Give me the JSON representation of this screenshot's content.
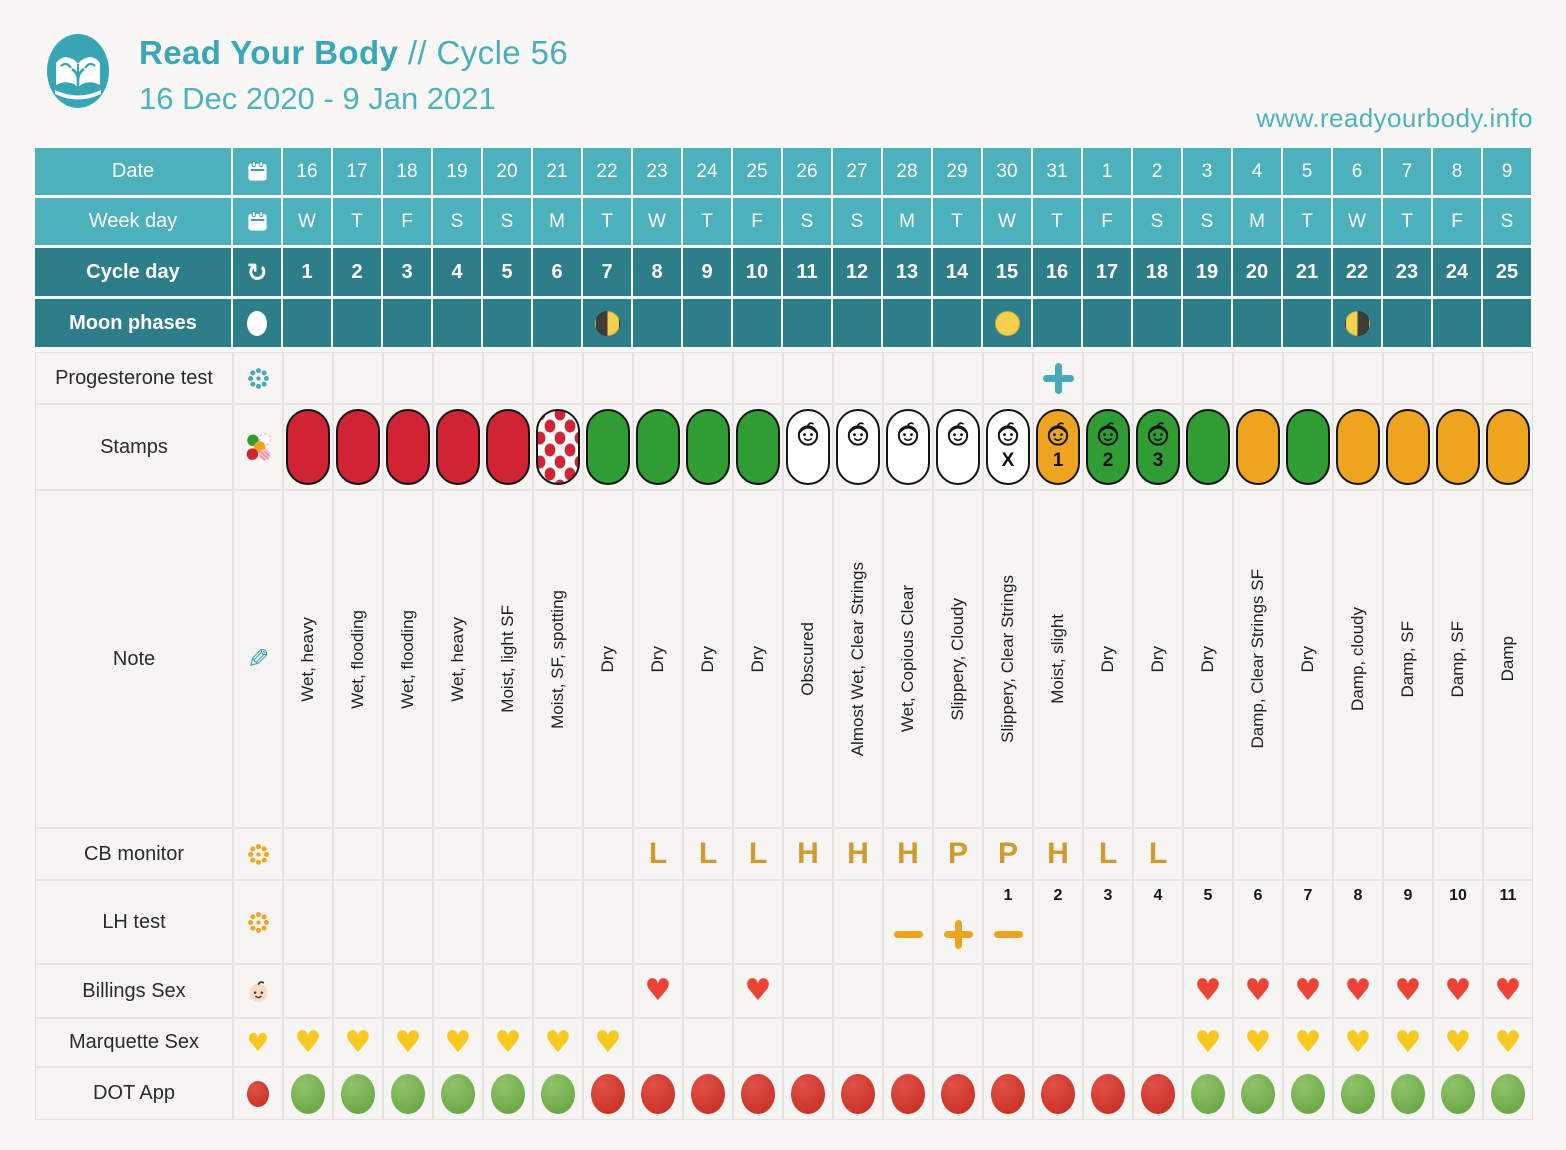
{
  "header": {
    "app_name": "Read Your Body",
    "cycle_label": "// Cycle 56",
    "date_range": "16 Dec 2020 - 9 Jan 2021",
    "website": "www.readyourbody.info"
  },
  "colors": {
    "teal_light": "#4cb1bd",
    "teal_dark": "#2e7e8a",
    "accent_teal": "#39a7b5",
    "stamp_red": "#d02334",
    "stamp_green": "#2f9d33",
    "stamp_orange": "#efa41f",
    "cb_letter_orange": "#cf9a30",
    "lh_symbol_orange": "#efa41f",
    "heart_red": "#ec4335",
    "heart_yellow": "#f7c81e",
    "dot_green": "#6aa84f",
    "dot_red": "#cc3528",
    "moon_yellow": "#f5d04c"
  },
  "table": {
    "days": 25,
    "rows": [
      {
        "id": "date",
        "label": "Date",
        "icon": "calendar-icon",
        "type": "header",
        "variant": "light",
        "values": [
          "16",
          "17",
          "18",
          "19",
          "20",
          "21",
          "22",
          "23",
          "24",
          "25",
          "26",
          "27",
          "28",
          "29",
          "30",
          "31",
          "1",
          "2",
          "3",
          "4",
          "5",
          "6",
          "7",
          "8",
          "9"
        ]
      },
      {
        "id": "weekday",
        "label": "Week day",
        "icon": "calendar-icon",
        "type": "header",
        "variant": "light",
        "values": [
          "W",
          "T",
          "F",
          "S",
          "S",
          "M",
          "T",
          "W",
          "T",
          "F",
          "S",
          "S",
          "M",
          "T",
          "W",
          "T",
          "F",
          "S",
          "S",
          "M",
          "T",
          "W",
          "T",
          "F",
          "S"
        ]
      },
      {
        "id": "cycle-day",
        "label": "Cycle day",
        "icon": "cycle-icon",
        "type": "header",
        "variant": "dark",
        "values": [
          "1",
          "2",
          "3",
          "4",
          "5",
          "6",
          "7",
          "8",
          "9",
          "10",
          "11",
          "12",
          "13",
          "14",
          "15",
          "16",
          "17",
          "18",
          "19",
          "20",
          "21",
          "22",
          "23",
          "24",
          "25"
        ]
      },
      {
        "id": "moon-phases",
        "label": "Moon phases",
        "icon": "new-moon-icon",
        "type": "moon",
        "variant": "dark",
        "values": [
          "",
          "",
          "",
          "",
          "",
          "",
          "first-quarter",
          "",
          "",
          "",
          "",
          "",
          "",
          "",
          "full",
          "",
          "",
          "",
          "",
          "",
          "",
          "last-quarter",
          "",
          "",
          ""
        ]
      },
      {
        "id": "progesterone-test",
        "label": "Progesterone test",
        "icon": "flower-teal-icon",
        "type": "symbol",
        "values": [
          "",
          "",
          "",
          "",
          "",
          "",
          "",
          "",
          "",
          "",
          "",
          "",
          "",
          "",
          "",
          "plus",
          "",
          "",
          "",
          "",
          "",
          "",
          "",
          "",
          ""
        ]
      },
      {
        "id": "stamps",
        "label": "Stamps",
        "icon": "stamps-icon",
        "type": "stamps",
        "values": [
          {
            "fill": "red"
          },
          {
            "fill": "red"
          },
          {
            "fill": "red"
          },
          {
            "fill": "red"
          },
          {
            "fill": "red"
          },
          {
            "fill": "polka"
          },
          {
            "fill": "green"
          },
          {
            "fill": "green"
          },
          {
            "fill": "green"
          },
          {
            "fill": "green"
          },
          {
            "fill": "white",
            "baby": true
          },
          {
            "fill": "white",
            "baby": true
          },
          {
            "fill": "white",
            "baby": true
          },
          {
            "fill": "white",
            "baby": true
          },
          {
            "fill": "white",
            "baby": true,
            "label": "X"
          },
          {
            "fill": "orange",
            "baby": true,
            "label": "1"
          },
          {
            "fill": "green",
            "baby": true,
            "label": "2"
          },
          {
            "fill": "green",
            "baby": true,
            "label": "3"
          },
          {
            "fill": "green"
          },
          {
            "fill": "orange"
          },
          {
            "fill": "green"
          },
          {
            "fill": "orange"
          },
          {
            "fill": "orange"
          },
          {
            "fill": "orange"
          },
          {
            "fill": "orange"
          }
        ]
      },
      {
        "id": "note",
        "label": "Note",
        "icon": "pencil-icon",
        "type": "note",
        "values": [
          "Wet, heavy",
          "Wet, flooding",
          "Wet, flooding",
          "Wet, heavy",
          "Moist, light SF",
          "Moist, SF, spotting",
          "Dry",
          "Dry",
          "Dry",
          "Dry",
          "Obscured",
          "Almost Wet, Clear Strings",
          "Wet, Copious Clear",
          "Slippery, Cloudy",
          "Slippery, Clear Strings",
          "Moist, slight",
          "Dry",
          "Dry",
          "Dry",
          "Damp, Clear Strings SF",
          "Dry",
          "Damp, cloudy",
          "Damp, SF",
          "Damp, SF",
          "Damp"
        ]
      },
      {
        "id": "cb-monitor",
        "label": "CB monitor",
        "icon": "flower-orange-icon",
        "type": "letters",
        "values": [
          "",
          "",
          "",
          "",
          "",
          "",
          "",
          "L",
          "L",
          "L",
          "H",
          "H",
          "H",
          "P",
          "P",
          "H",
          "L",
          "L",
          "",
          "",
          "",
          "",
          "",
          "",
          ""
        ]
      },
      {
        "id": "lh-test",
        "label": "LH test",
        "icon": "flower-orange-icon",
        "type": "lh",
        "numbers": [
          "",
          "",
          "",
          "",
          "",
          "",
          "",
          "",
          "",
          "",
          "",
          "",
          "",
          "",
          "1",
          "2",
          "3",
          "4",
          "5",
          "6",
          "7",
          "8",
          "9",
          "10",
          "11"
        ],
        "symbols": [
          "",
          "",
          "",
          "",
          "",
          "",
          "",
          "",
          "",
          "",
          "",
          "",
          "minus",
          "plus",
          "minus",
          "",
          "",
          "",
          "",
          "",
          "",
          "",
          "",
          "",
          ""
        ]
      },
      {
        "id": "billings-sex",
        "label": "Billings Sex",
        "icon": "baby-icon",
        "type": "hearts",
        "heart_color": "red",
        "days": [
          8,
          10,
          19,
          20,
          21,
          22,
          23,
          24,
          25
        ]
      },
      {
        "id": "marquette-sex",
        "label": "Marquette Sex",
        "icon": "heart-yellow-icon",
        "type": "hearts",
        "heart_color": "yellow",
        "days": [
          1,
          2,
          3,
          4,
          5,
          6,
          7,
          19,
          20,
          21,
          22,
          23,
          24,
          25
        ]
      },
      {
        "id": "dot-app",
        "label": "DOT App",
        "icon": "dot-red-icon",
        "type": "dots",
        "values": [
          "green",
          "green",
          "green",
          "green",
          "green",
          "green",
          "red",
          "red",
          "red",
          "red",
          "red",
          "red",
          "red",
          "red",
          "red",
          "red",
          "red",
          "red",
          "green",
          "green",
          "green",
          "green",
          "green",
          "green",
          "green"
        ]
      }
    ]
  },
  "chart_data": {
    "type": "table",
    "title": "Read Your Body // Cycle 56 (16 Dec 2020 - 9 Jan 2021)",
    "categories_label": "Cycle day",
    "categories": [
      1,
      2,
      3,
      4,
      5,
      6,
      7,
      8,
      9,
      10,
      11,
      12,
      13,
      14,
      15,
      16,
      17,
      18,
      19,
      20,
      21,
      22,
      23,
      24,
      25
    ],
    "series": [
      {
        "name": "Date",
        "values": [
          "16",
          "17",
          "18",
          "19",
          "20",
          "21",
          "22",
          "23",
          "24",
          "25",
          "26",
          "27",
          "28",
          "29",
          "30",
          "31",
          "1",
          "2",
          "3",
          "4",
          "5",
          "6",
          "7",
          "8",
          "9"
        ]
      },
      {
        "name": "Week day",
        "values": [
          "W",
          "T",
          "F",
          "S",
          "S",
          "M",
          "T",
          "W",
          "T",
          "F",
          "S",
          "S",
          "M",
          "T",
          "W",
          "T",
          "F",
          "S",
          "S",
          "M",
          "T",
          "W",
          "T",
          "F",
          "S"
        ]
      },
      {
        "name": "Moon phases",
        "values": [
          "",
          "",
          "",
          "",
          "",
          "",
          "first-quarter",
          "",
          "",
          "",
          "",
          "",
          "",
          "",
          "full",
          "",
          "",
          "",
          "",
          "",
          "",
          "last-quarter",
          "",
          "",
          ""
        ]
      },
      {
        "name": "Progesterone test",
        "values": [
          "",
          "",
          "",
          "",
          "",
          "",
          "",
          "",
          "",
          "",
          "",
          "",
          "",
          "",
          "",
          "positive",
          "",
          "",
          "",
          "",
          "",
          "",
          "",
          "",
          ""
        ]
      },
      {
        "name": "Stamps",
        "values": [
          "red",
          "red",
          "red",
          "red",
          "red",
          "red-spotting",
          "green",
          "green",
          "green",
          "green",
          "white-baby",
          "white-baby",
          "white-baby",
          "white-baby",
          "white-baby-X",
          "orange-baby-1",
          "green-baby-2",
          "green-baby-3",
          "green",
          "orange",
          "green",
          "orange",
          "orange",
          "orange",
          "orange"
        ]
      },
      {
        "name": "Note",
        "values": [
          "Wet, heavy",
          "Wet, flooding",
          "Wet, flooding",
          "Wet, heavy",
          "Moist, light SF",
          "Moist, SF, spotting",
          "Dry",
          "Dry",
          "Dry",
          "Dry",
          "Obscured",
          "Almost Wet, Clear Strings",
          "Wet, Copious Clear",
          "Slippery, Cloudy",
          "Slippery, Clear Strings",
          "Moist, slight",
          "Dry",
          "Dry",
          "Dry",
          "Damp, Clear Strings SF",
          "Dry",
          "Damp, cloudy",
          "Damp, SF",
          "Damp, SF",
          "Damp"
        ]
      },
      {
        "name": "CB monitor",
        "values": [
          "",
          "",
          "",
          "",
          "",
          "",
          "",
          "L",
          "L",
          "L",
          "H",
          "H",
          "H",
          "P",
          "P",
          "H",
          "L",
          "L",
          "",
          "",
          "",
          "",
          "",
          "",
          ""
        ]
      },
      {
        "name": "LH test result",
        "values": [
          "",
          "",
          "",
          "",
          "",
          "",
          "",
          "",
          "",
          "",
          "",
          "",
          "negative",
          "positive",
          "negative",
          "",
          "",
          "",
          "",
          "",
          "",
          "",
          "",
          "",
          ""
        ]
      },
      {
        "name": "LH test number",
        "values": [
          "",
          "",
          "",
          "",
          "",
          "",
          "",
          "",
          "",
          "",
          "",
          "",
          "",
          "",
          "1",
          "2",
          "3",
          "4",
          "5",
          "6",
          "7",
          "8",
          "9",
          "10",
          "11"
        ]
      },
      {
        "name": "Billings Sex",
        "values": [
          "",
          "",
          "",
          "",
          "",
          "",
          "",
          "yes",
          "",
          "yes",
          "",
          "",
          "",
          "",
          "",
          "",
          "",
          "",
          "yes",
          "yes",
          "yes",
          "yes",
          "yes",
          "yes",
          "yes"
        ]
      },
      {
        "name": "Marquette Sex",
        "values": [
          "yes",
          "yes",
          "yes",
          "yes",
          "yes",
          "yes",
          "yes",
          "",
          "",
          "",
          "",
          "",
          "",
          "",
          "",
          "",
          "",
          "",
          "yes",
          "yes",
          "yes",
          "yes",
          "yes",
          "yes",
          "yes"
        ]
      },
      {
        "name": "DOT App",
        "values": [
          "green",
          "green",
          "green",
          "green",
          "green",
          "green",
          "red",
          "red",
          "red",
          "red",
          "red",
          "red",
          "red",
          "red",
          "red",
          "red",
          "red",
          "red",
          "green",
          "green",
          "green",
          "green",
          "green",
          "green",
          "green"
        ]
      }
    ]
  }
}
